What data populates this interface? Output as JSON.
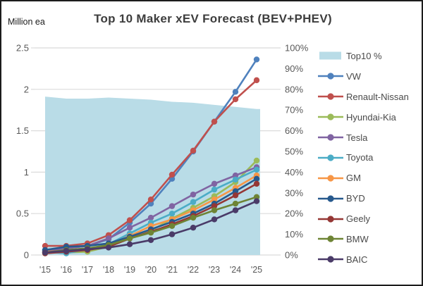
{
  "header": {
    "title": "Top 10 Maker xEV Forecast (BEV+PHEV)",
    "unit_label": "Million ea"
  },
  "chart_data": {
    "type": "line",
    "title": "Top 10 Maker xEV Forecast (BEV+PHEV)",
    "x": [
      "'15",
      "'16",
      "'17",
      "'18",
      "'19",
      "'20",
      "'21",
      "'22",
      "'23",
      "'24",
      "'25"
    ],
    "left_axis": {
      "label": "Million ea",
      "ticks": [
        "0",
        "0.5",
        "1",
        "1.5",
        "2",
        "2.5"
      ],
      "range": [
        0,
        2.5
      ]
    },
    "right_axis": {
      "ticks": [
        "0%",
        "10%",
        "20%",
        "30%",
        "40%",
        "50%",
        "60%",
        "70%",
        "80%",
        "90%",
        "100%"
      ],
      "range": [
        0,
        100
      ]
    },
    "grid": true,
    "legend_position": "right",
    "area_series": {
      "name": "Top10 %",
      "axis": "right",
      "color": "#B9DCE7",
      "values": [
        76.5,
        75.5,
        75.5,
        76,
        75.5,
        75,
        74,
        73.5,
        72.5,
        71.5,
        70.5
      ]
    },
    "series": [
      {
        "name": "VW",
        "color": "#4F81BD",
        "values": [
          0.06,
          0.08,
          0.11,
          0.19,
          0.39,
          0.62,
          0.92,
          1.25,
          1.61,
          1.97,
          2.36
        ]
      },
      {
        "name": "Renault-Nissan",
        "color": "#C0504D",
        "values": [
          0.11,
          0.11,
          0.14,
          0.24,
          0.42,
          0.67,
          0.97,
          1.26,
          1.61,
          1.88,
          2.11
        ]
      },
      {
        "name": "Hyundai-Kia",
        "color": "#9BBB59",
        "values": [
          0.03,
          0.03,
          0.04,
          0.1,
          0.2,
          0.29,
          0.44,
          0.57,
          0.71,
          0.88,
          1.14
        ]
      },
      {
        "name": "Tesla",
        "color": "#8064A2",
        "values": [
          0.05,
          0.08,
          0.11,
          0.2,
          0.33,
          0.45,
          0.59,
          0.73,
          0.86,
          0.96,
          1.06
        ]
      },
      {
        "name": "Toyota",
        "color": "#4BACC6",
        "values": [
          0.04,
          0.02,
          0.07,
          0.13,
          0.26,
          0.39,
          0.5,
          0.64,
          0.79,
          0.91,
          1.03
        ]
      },
      {
        "name": "GM",
        "color": "#F79646",
        "values": [
          0.04,
          0.05,
          0.07,
          0.12,
          0.23,
          0.35,
          0.43,
          0.54,
          0.67,
          0.81,
          0.96
        ]
      },
      {
        "name": "BYD",
        "color": "#27598D",
        "values": [
          0.06,
          0.1,
          0.11,
          0.14,
          0.22,
          0.31,
          0.4,
          0.5,
          0.62,
          0.77,
          0.92
        ]
      },
      {
        "name": "Geely",
        "color": "#953735",
        "values": [
          0.02,
          0.04,
          0.06,
          0.1,
          0.2,
          0.28,
          0.37,
          0.47,
          0.59,
          0.72,
          0.86
        ]
      },
      {
        "name": "BMW",
        "color": "#6E8435",
        "values": [
          0.03,
          0.06,
          0.08,
          0.12,
          0.2,
          0.27,
          0.35,
          0.45,
          0.54,
          0.62,
          0.7
        ]
      },
      {
        "name": "BAIC",
        "color": "#4A3B68",
        "values": [
          0.03,
          0.05,
          0.07,
          0.09,
          0.13,
          0.18,
          0.25,
          0.33,
          0.43,
          0.54,
          0.65
        ]
      }
    ]
  },
  "colors": {
    "gridline": "#DBDBDB",
    "tick_text": "#595959",
    "title_text": "#3d3d3d"
  }
}
